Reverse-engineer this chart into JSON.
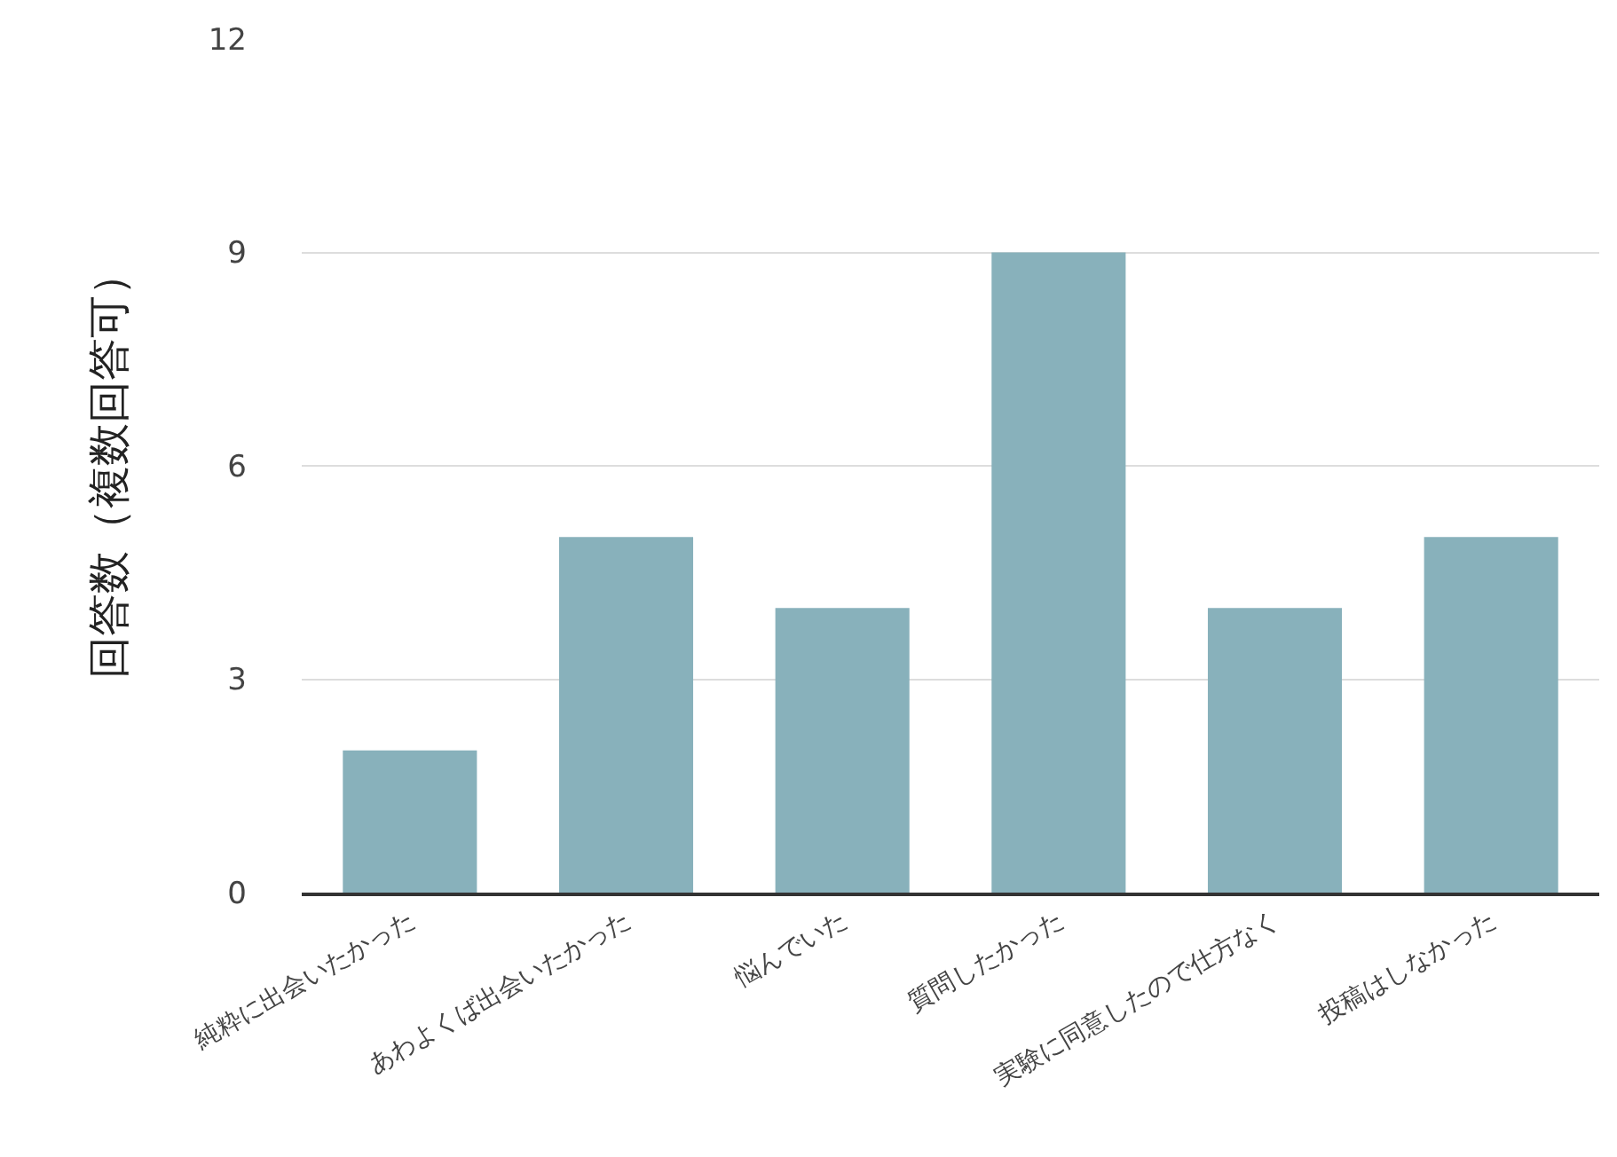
{
  "chart_data": {
    "type": "bar",
    "ylabel": "回答数（複数回答可）",
    "categories": [
      "純粋に出会いたかった",
      "あわよくば出会いたかった",
      "悩んでいた",
      "質問したかった",
      "実験に同意したので仕方なく",
      "投稿はしなかった"
    ],
    "values": [
      2,
      5,
      4,
      9,
      4,
      5
    ],
    "color": "#88b1bb",
    "ylim": [
      0,
      12
    ],
    "yticks": [
      0,
      3,
      6,
      9,
      12
    ],
    "grid": "y",
    "legend": false
  }
}
